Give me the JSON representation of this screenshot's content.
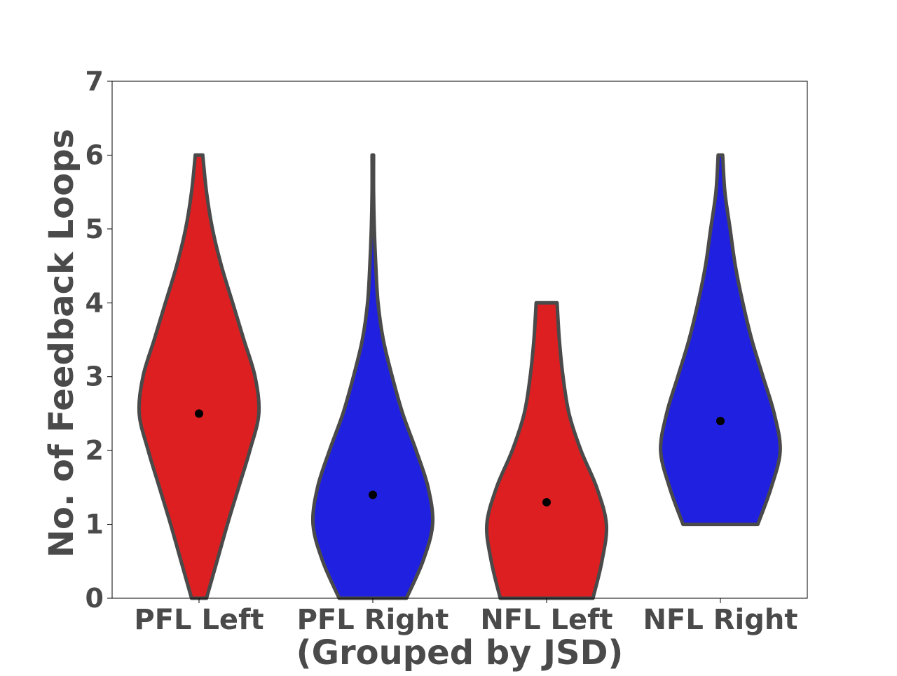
{
  "chart_data": {
    "type": "violin",
    "title": "",
    "xlabel": "(Grouped by JSD)",
    "ylabel": "No. of Feedback Loops",
    "ylim": [
      0,
      7
    ],
    "yticks": [
      0,
      1,
      2,
      3,
      4,
      5,
      6,
      7
    ],
    "grid": false,
    "categories": [
      "PFL Left",
      "PFL Right",
      "NFL Left",
      "NFL Right"
    ],
    "series": [
      {
        "category": "PFL Left",
        "color": "#de1f21",
        "mean": 2.5,
        "min": 0,
        "max": 6,
        "density": [
          [
            0,
            0.1
          ],
          [
            0.5,
            0.24
          ],
          [
            1,
            0.38
          ],
          [
            1.5,
            0.53
          ],
          [
            2,
            0.68
          ],
          [
            2.5,
            0.8
          ],
          [
            3,
            0.75
          ],
          [
            3.5,
            0.6
          ],
          [
            4,
            0.45
          ],
          [
            4.5,
            0.3
          ],
          [
            5,
            0.18
          ],
          [
            5.5,
            0.1
          ],
          [
            6,
            0.05
          ]
        ]
      },
      {
        "category": "PFL Right",
        "color": "#2020e0",
        "mean": 1.4,
        "min": 0,
        "max": 6,
        "density": [
          [
            0,
            0.45
          ],
          [
            0.5,
            0.67
          ],
          [
            1,
            0.8
          ],
          [
            1.5,
            0.74
          ],
          [
            2,
            0.58
          ],
          [
            2.5,
            0.4
          ],
          [
            3,
            0.26
          ],
          [
            3.5,
            0.14
          ],
          [
            4,
            0.07
          ],
          [
            4.5,
            0.04
          ],
          [
            5,
            0.02
          ],
          [
            5.5,
            0.01
          ],
          [
            6,
            0.01
          ]
        ]
      },
      {
        "category": "NFL Left",
        "color": "#de1f21",
        "mean": 1.3,
        "min": 0,
        "max": 4,
        "density": [
          [
            0,
            0.62
          ],
          [
            0.5,
            0.74
          ],
          [
            1,
            0.8
          ],
          [
            1.5,
            0.67
          ],
          [
            2,
            0.46
          ],
          [
            2.5,
            0.3
          ],
          [
            3,
            0.22
          ],
          [
            3.5,
            0.17
          ],
          [
            4,
            0.14
          ]
        ]
      },
      {
        "category": "NFL Right",
        "color": "#2020e0",
        "mean": 2.4,
        "min": 1,
        "max": 6,
        "density": [
          [
            1,
            0.5
          ],
          [
            1.5,
            0.68
          ],
          [
            2,
            0.8
          ],
          [
            2.5,
            0.72
          ],
          [
            3,
            0.57
          ],
          [
            3.5,
            0.42
          ],
          [
            4,
            0.3
          ],
          [
            4.5,
            0.2
          ],
          [
            5,
            0.13
          ],
          [
            5.5,
            0.06
          ],
          [
            6,
            0.03
          ]
        ]
      }
    ]
  }
}
